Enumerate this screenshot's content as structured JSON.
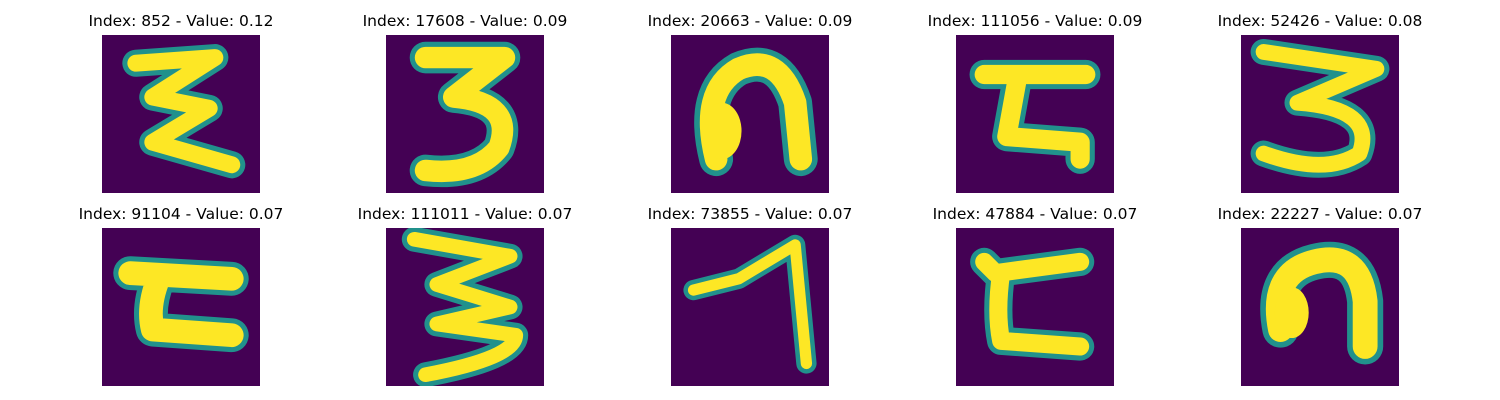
{
  "colors": {
    "background": "#440154",
    "stroke": "#fde725",
    "edge": "#21918c"
  },
  "panels": [
    {
      "title": "Index: 852 - Value: 0.12",
      "glyph": "z-loop-icon"
    },
    {
      "title": "Index: 17608 - Value: 0.09",
      "glyph": "three-icon"
    },
    {
      "title": "Index: 20663 - Value: 0.09",
      "glyph": "arch-icon"
    },
    {
      "title": "Index: 111056 - Value: 0.09",
      "glyph": "bracket-z-icon"
    },
    {
      "title": "Index: 52426 - Value: 0.08",
      "glyph": "three-icon"
    },
    {
      "title": "Index: 91104 - Value: 0.07",
      "glyph": "c-shape-icon"
    },
    {
      "title": "Index: 111011 - Value: 0.07",
      "glyph": "zigzag-three-icon"
    },
    {
      "title": "Index: 73855 - Value: 0.07",
      "glyph": "seven-icon"
    },
    {
      "title": "Index: 47884 - Value: 0.07",
      "glyph": "c-shape-icon"
    },
    {
      "title": "Index: 22227 - Value: 0.07",
      "glyph": "arch-icon"
    }
  ]
}
